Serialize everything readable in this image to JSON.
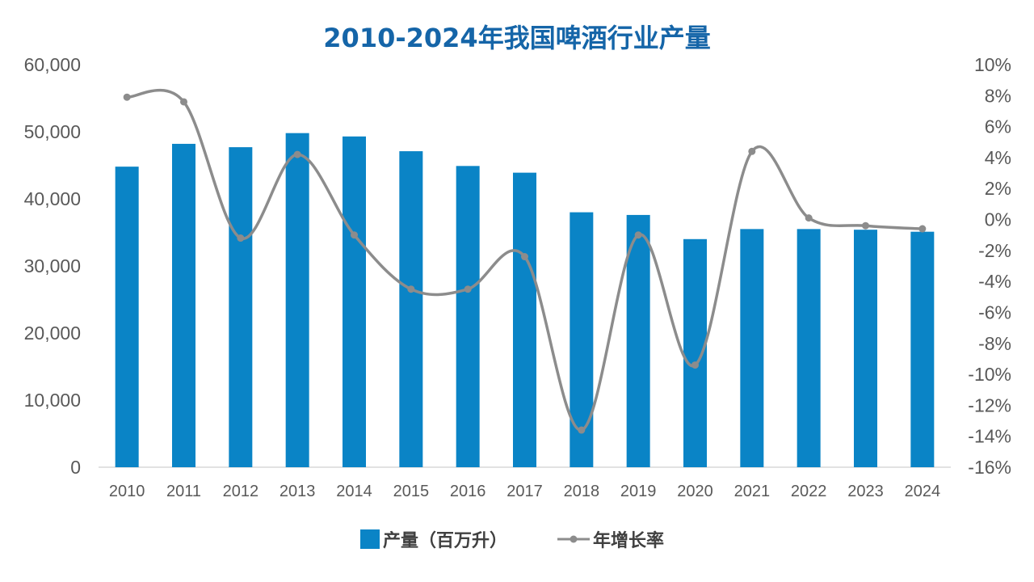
{
  "chart_data": {
    "type": "bar+line",
    "title": "2010-2024年我国啤酒行业产量",
    "categories": [
      "2010",
      "2011",
      "2012",
      "2013",
      "2014",
      "2015",
      "2016",
      "2017",
      "2018",
      "2019",
      "2020",
      "2021",
      "2022",
      "2023",
      "2024"
    ],
    "series": [
      {
        "name": "产量（百万升）",
        "type": "bar",
        "axis": "left",
        "color": "#0a84c6",
        "values": [
          44800,
          48200,
          47700,
          49800,
          49300,
          47100,
          44900,
          43900,
          38000,
          37600,
          34000,
          35500,
          35500,
          35400,
          35100
        ]
      },
      {
        "name": "年增长率",
        "type": "line",
        "axis": "right",
        "color": "#8c8c8c",
        "unit": "%",
        "values": [
          7.9,
          7.6,
          -1.2,
          4.2,
          -1.0,
          -4.5,
          -4.5,
          -2.4,
          -13.6,
          -1.0,
          -9.4,
          4.4,
          0.1,
          -0.4,
          -0.6
        ]
      }
    ],
    "left_axis": {
      "ylim": [
        0,
        60000
      ],
      "ticks": [
        "0",
        "10,000",
        "20,000",
        "30,000",
        "40,000",
        "50,000",
        "60,000"
      ]
    },
    "right_axis": {
      "ylim": [
        -16,
        10
      ],
      "ticks": [
        "-16%",
        "-14%",
        "-12%",
        "-10%",
        "-8%",
        "-6%",
        "-4%",
        "-2%",
        "0%",
        "2%",
        "4%",
        "6%",
        "8%",
        "10%"
      ]
    },
    "grid": false,
    "legend": "bottom"
  }
}
